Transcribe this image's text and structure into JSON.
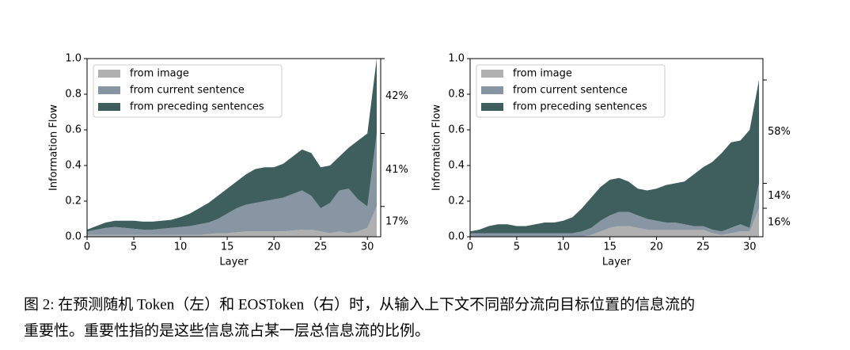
{
  "chart_data": [
    {
      "type": "stacked-area",
      "xlabel": "Layer",
      "ylabel": "Information Flow",
      "x": [
        0,
        1,
        2,
        3,
        4,
        5,
        6,
        7,
        8,
        9,
        10,
        11,
        12,
        13,
        14,
        15,
        16,
        17,
        18,
        19,
        20,
        21,
        22,
        23,
        24,
        25,
        26,
        27,
        28,
        29,
        30,
        31
      ],
      "series": [
        {
          "name": "from image",
          "color": "#b0b0b0",
          "values": [
            0.01,
            0.01,
            0.01,
            0.01,
            0.01,
            0.01,
            0.01,
            0.01,
            0.01,
            0.01,
            0.01,
            0.01,
            0.01,
            0.015,
            0.02,
            0.02,
            0.025,
            0.03,
            0.03,
            0.03,
            0.03,
            0.03,
            0.035,
            0.04,
            0.04,
            0.03,
            0.02,
            0.03,
            0.02,
            0.03,
            0.05,
            0.17
          ]
        },
        {
          "name": "from current sentence",
          "color": "#8796a2",
          "values": [
            0.02,
            0.03,
            0.04,
            0.045,
            0.04,
            0.035,
            0.03,
            0.03,
            0.035,
            0.04,
            0.045,
            0.05,
            0.06,
            0.065,
            0.08,
            0.11,
            0.135,
            0.15,
            0.16,
            0.17,
            0.18,
            0.19,
            0.205,
            0.22,
            0.19,
            0.13,
            0.17,
            0.23,
            0.25,
            0.18,
            0.12,
            0.41
          ]
        },
        {
          "name": "from preceding sentences",
          "color": "#3f5f5f",
          "values": [
            0.01,
            0.02,
            0.03,
            0.035,
            0.04,
            0.045,
            0.045,
            0.045,
            0.045,
            0.045,
            0.055,
            0.07,
            0.09,
            0.11,
            0.13,
            0.14,
            0.15,
            0.17,
            0.19,
            0.19,
            0.18,
            0.19,
            0.21,
            0.23,
            0.24,
            0.23,
            0.21,
            0.19,
            0.23,
            0.33,
            0.41,
            0.42
          ]
        }
      ],
      "shares": {
        "values": [
          0.17,
          0.41,
          0.42
        ],
        "value_labels": [
          "17%",
          "41%",
          "42%"
        ]
      },
      "xlim": [
        0,
        31
      ],
      "xticks": [
        0,
        5,
        10,
        15,
        20,
        25,
        30
      ],
      "ylim": [
        0,
        1
      ],
      "yticks": [
        {
          "value": 0,
          "label": "0.0"
        },
        {
          "value": 0.2,
          "label": "0.2"
        },
        {
          "value": 0.4,
          "label": "0.4"
        },
        {
          "value": 0.6,
          "label": "0.6"
        },
        {
          "value": 0.8,
          "label": "0.8"
        },
        {
          "value": 1,
          "label": "1.0"
        }
      ],
      "legend": "upper left"
    },
    {
      "type": "stacked-area",
      "xlabel": "Layer",
      "ylabel": "Information Flow",
      "x": [
        0,
        1,
        2,
        3,
        4,
        5,
        6,
        7,
        8,
        9,
        10,
        11,
        12,
        13,
        14,
        15,
        16,
        17,
        18,
        19,
        20,
        21,
        22,
        23,
        24,
        25,
        26,
        27,
        28,
        29,
        30,
        31
      ],
      "series": [
        {
          "name": "from image",
          "color": "#b0b0b0",
          "values": [
            0,
            0,
            0,
            0,
            0,
            0,
            0,
            0,
            0,
            0,
            0,
            0,
            0,
            0.01,
            0.03,
            0.05,
            0.06,
            0.06,
            0.05,
            0.04,
            0.04,
            0.04,
            0.04,
            0.04,
            0.04,
            0.04,
            0.02,
            0.01,
            0.02,
            0.03,
            0.03,
            0.16
          ]
        },
        {
          "name": "from current sentence",
          "color": "#8796a2",
          "values": [
            0.02,
            0.02,
            0.02,
            0.02,
            0.02,
            0.02,
            0.02,
            0.02,
            0.02,
            0.02,
            0.02,
            0.02,
            0.03,
            0.04,
            0.06,
            0.07,
            0.08,
            0.08,
            0.07,
            0.06,
            0.05,
            0.04,
            0.04,
            0.03,
            0.02,
            0.02,
            0.02,
            0.02,
            0.03,
            0.04,
            0.02,
            0.14
          ]
        },
        {
          "name": "from preceding sentences",
          "color": "#3f5f5f",
          "values": [
            0.01,
            0.02,
            0.04,
            0.05,
            0.05,
            0.04,
            0.04,
            0.05,
            0.06,
            0.06,
            0.07,
            0.09,
            0.13,
            0.17,
            0.19,
            0.2,
            0.19,
            0.17,
            0.15,
            0.16,
            0.18,
            0.21,
            0.22,
            0.24,
            0.29,
            0.33,
            0.38,
            0.44,
            0.48,
            0.47,
            0.55,
            0.58
          ]
        }
      ],
      "shares": {
        "values": [
          0.16,
          0.14,
          0.58
        ],
        "value_labels": [
          "16%",
          "14%",
          "58%"
        ]
      },
      "xlim": [
        0,
        31
      ],
      "xticks": [
        0,
        5,
        10,
        15,
        20,
        25,
        30
      ],
      "ylim": [
        0,
        1
      ],
      "yticks": [
        {
          "value": 0,
          "label": "0.0"
        },
        {
          "value": 0.2,
          "label": "0.2"
        },
        {
          "value": 0.4,
          "label": "0.4"
        },
        {
          "value": 0.6,
          "label": "0.6"
        },
        {
          "value": 0.8,
          "label": "0.8"
        },
        {
          "value": 1,
          "label": "1.0"
        }
      ],
      "legend": "upper left"
    }
  ],
  "caption": [
    "图 2: 在预测随机 Token（左）和 EOSToken（右）时，从输入上下文不同部分流向目标位置的信息流的",
    "重要性。重要性指的是这些信息流占某一层总信息流的比例。"
  ]
}
